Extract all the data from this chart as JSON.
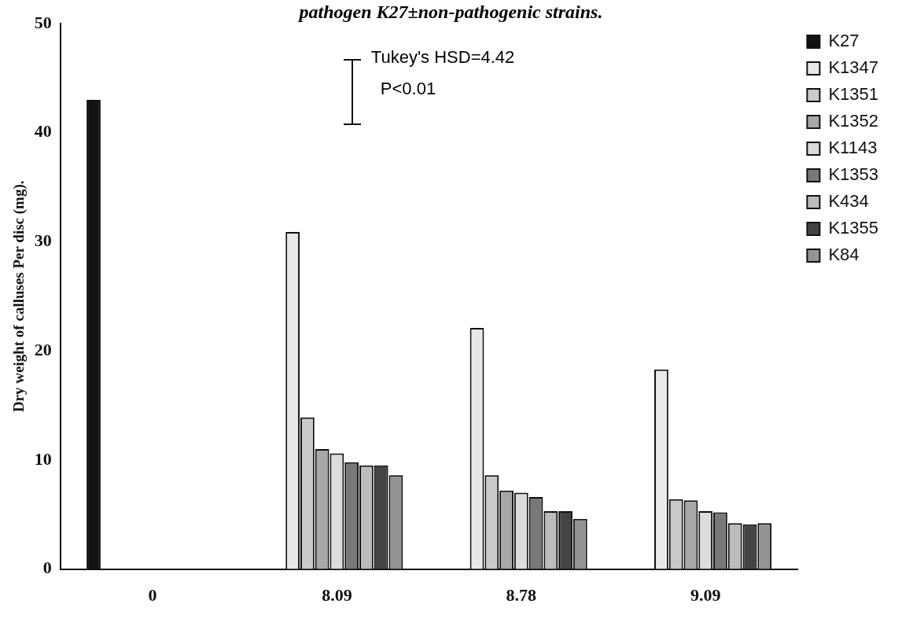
{
  "chart_data": {
    "type": "bar",
    "title": "pathogen K27±non-pathogenic strains.",
    "ylabel": "Dry weight of calluses Per disc (mg).",
    "categories": [
      "0",
      "8.09",
      "8.78",
      "9.09"
    ],
    "series": [
      {
        "name": "K27",
        "color": "#111111",
        "values": [
          43,
          null,
          null,
          null
        ]
      },
      {
        "name": "K1347",
        "color": "#e9e9e9",
        "values": [
          null,
          30.9,
          22.1,
          18.3
        ]
      },
      {
        "name": "K1351",
        "color": "#cacaca",
        "values": [
          null,
          13.9,
          8.6,
          6.4
        ]
      },
      {
        "name": "K1352",
        "color": "#a8a8a8",
        "values": [
          null,
          11.0,
          7.2,
          6.3
        ]
      },
      {
        "name": "K1143",
        "color": "#dcdcdc",
        "values": [
          null,
          10.6,
          7.0,
          5.3
        ]
      },
      {
        "name": "K1353",
        "color": "#787878",
        "values": [
          null,
          9.8,
          6.6,
          5.2
        ]
      },
      {
        "name": "K434",
        "color": "#bcbcbc",
        "values": [
          null,
          9.5,
          5.3,
          4.2
        ]
      },
      {
        "name": "K1355",
        "color": "#444444",
        "values": [
          null,
          9.5,
          5.3,
          4.1
        ]
      },
      {
        "name": "K84",
        "color": "#949494",
        "values": [
          null,
          8.6,
          4.6,
          4.2
        ]
      }
    ],
    "ylim": [
      0,
      50
    ],
    "yticks": [
      0,
      10,
      20,
      30,
      40,
      50
    ],
    "grid": false,
    "legend": "right",
    "annotations": [
      "Tukey's HSD=4.42",
      "P<0.01"
    ]
  }
}
